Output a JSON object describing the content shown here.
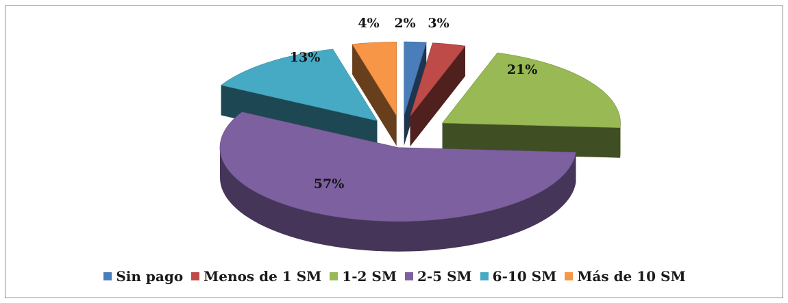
{
  "chart_data": {
    "type": "pie",
    "title": "",
    "categories": [
      "Sin pago",
      "Menos de 1 SM",
      "1-2 SM",
      "2-5 SM",
      "6-10 SM",
      "Más de 10 SM"
    ],
    "values": [
      2,
      3,
      21,
      57,
      13,
      4
    ],
    "labels": [
      "2%",
      "3%",
      "21%",
      "57%",
      "13%",
      "4%"
    ],
    "colors": [
      "#4a7ebb",
      "#be4b48",
      "#98b954",
      "#7d60a0",
      "#46aac5",
      "#f79646"
    ],
    "style": "3d-exploded",
    "legend_position": "bottom"
  }
}
